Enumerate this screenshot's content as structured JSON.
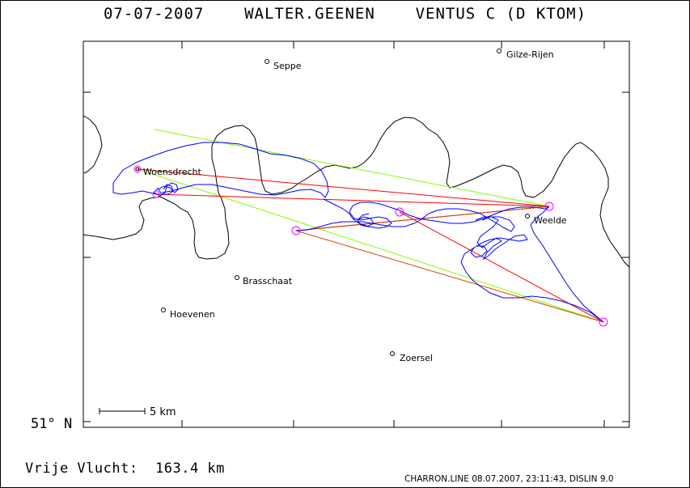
{
  "header": {
    "date": "07-07-2007",
    "pilot": "WALTER.GEENEN",
    "glider": "VENTUS C (D KTOM)"
  },
  "map": {
    "latitude_label": "51° N",
    "scale_label": "5 km",
    "towns": [
      {
        "name": "Seppe"
      },
      {
        "name": "Gilze-Rijen"
      },
      {
        "name": "Woensdrecht"
      },
      {
        "name": "Weelde"
      },
      {
        "name": "Brasschaat"
      },
      {
        "name": "Hoevenen"
      },
      {
        "name": "Zoersel"
      }
    ],
    "colors": {
      "border": "#000000",
      "track": "#0000ff",
      "task_leg": "#ff0000",
      "alt_leg": "#80ff00",
      "final_leg": "#cc4400",
      "turnpoint": "#ff00ff"
    }
  },
  "footer": {
    "distance": "Vrije Vlucht:  163.4 km",
    "credit": "CHARRON.LINE 08.07.2007, 23:11:43, DISLIN 9.0"
  }
}
